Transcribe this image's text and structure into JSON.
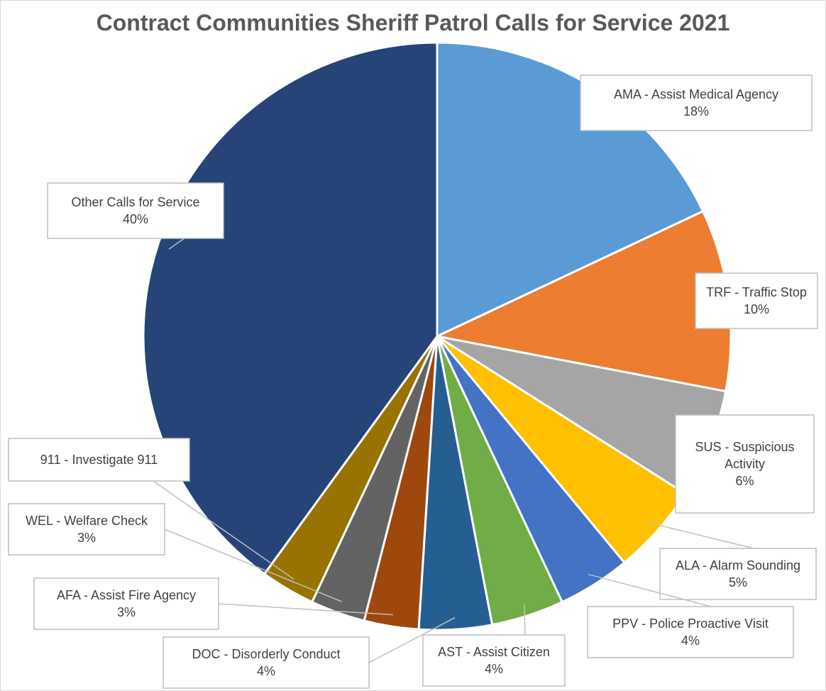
{
  "chart_data": {
    "type": "pie",
    "title": "Contract Communities Sheriff Patrol Calls for Service 2021",
    "slices": [
      {
        "label": "AMA - Assist Medical Agency",
        "value": 18,
        "value_label": "18%",
        "color": "#5B9BD5"
      },
      {
        "label": "TRF - Traffic Stop",
        "value": 10,
        "value_label": "10%",
        "color": "#ED7D31"
      },
      {
        "label": "SUS - Suspicious Activity",
        "value": 6,
        "value_label": "6%",
        "color": "#A5A5A5"
      },
      {
        "label": "ALA - Alarm Sounding",
        "value": 5,
        "value_label": "5%",
        "color": "#FFC000"
      },
      {
        "label": "PPV - Police Proactive Visit",
        "value": 4,
        "value_label": "4%",
        "color": "#4472C4"
      },
      {
        "label": "AST - Assist Citizen",
        "value": 4,
        "value_label": "4%",
        "color": "#70AD47"
      },
      {
        "label": "DOC - Disorderly Conduct",
        "value": 4,
        "value_label": "4%",
        "color": "#255E91"
      },
      {
        "label": "AFA - Assist Fire Agency",
        "value": 3,
        "value_label": "3%",
        "color": "#9E480E"
      },
      {
        "label": "WEL - Welfare Check",
        "value": 3,
        "value_label": "3%",
        "color": "#636363"
      },
      {
        "label": "911 - Investigate 911",
        "value": 3,
        "value_label": "",
        "color": "#997300"
      },
      {
        "label": "Other Calls for Service",
        "value": 40,
        "value_label": "40%",
        "color": "#264478"
      }
    ]
  }
}
